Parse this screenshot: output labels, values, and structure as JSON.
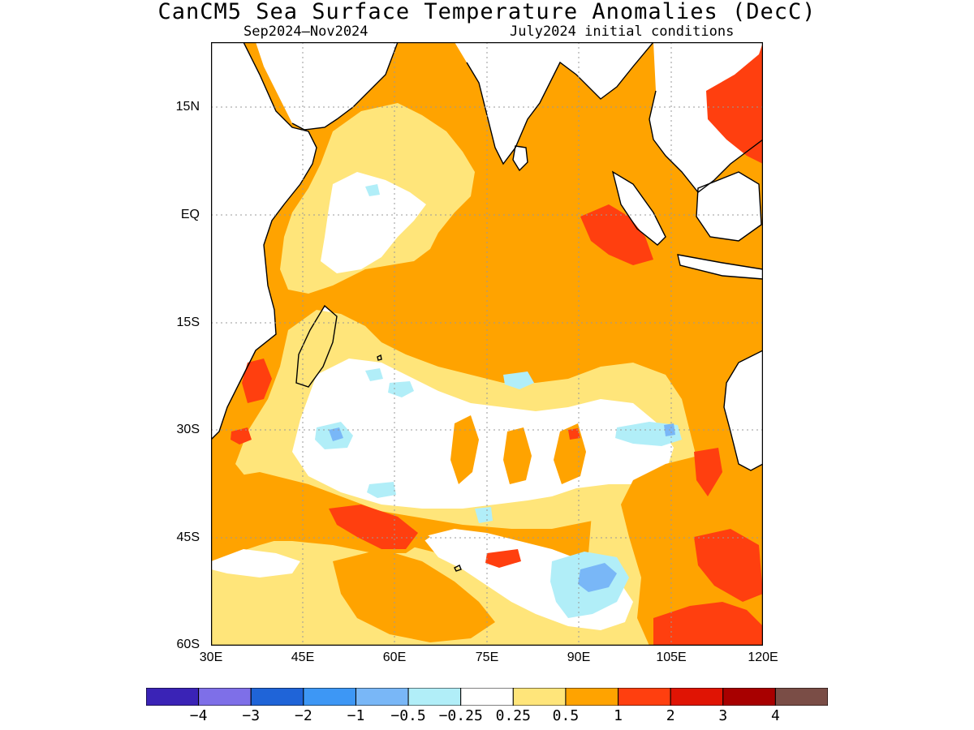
{
  "title": "CanCM5 Sea Surface Temperature Anomalies (DecC)",
  "subtitle_left": "Sep2024–Nov2024",
  "subtitle_right": "July2024 initial conditions",
  "y_ticks": [
    "15N",
    "EQ",
    "15S",
    "30S",
    "45S",
    "60S"
  ],
  "x_ticks": [
    "30E",
    "45E",
    "60E",
    "75E",
    "90E",
    "105E",
    "120E"
  ],
  "colorbar": {
    "colors": [
      "#3a23b6",
      "#7e6fe8",
      "#1f64d8",
      "#3d97f5",
      "#79b7f7",
      "#b1eef8",
      "#ffffff",
      "#ffe57a",
      "#ffa300",
      "#ff3f0f",
      "#e01404",
      "#a80000",
      "#7a4d46"
    ],
    "labels": [
      "−4",
      "−3",
      "−2",
      "−1",
      "−0.5",
      "−0.25",
      "0.25",
      "0.5",
      "1",
      "2",
      "3",
      "4"
    ]
  },
  "map_colors": {
    "white": "#ffffff",
    "light_yellow": "#ffe57a",
    "orange": "#ffa300",
    "red_orange": "#ff3f0f",
    "light_cyan": "#b1eef8",
    "light_blue": "#79b7f7",
    "coast": "#000000",
    "grid": "#999999"
  }
}
